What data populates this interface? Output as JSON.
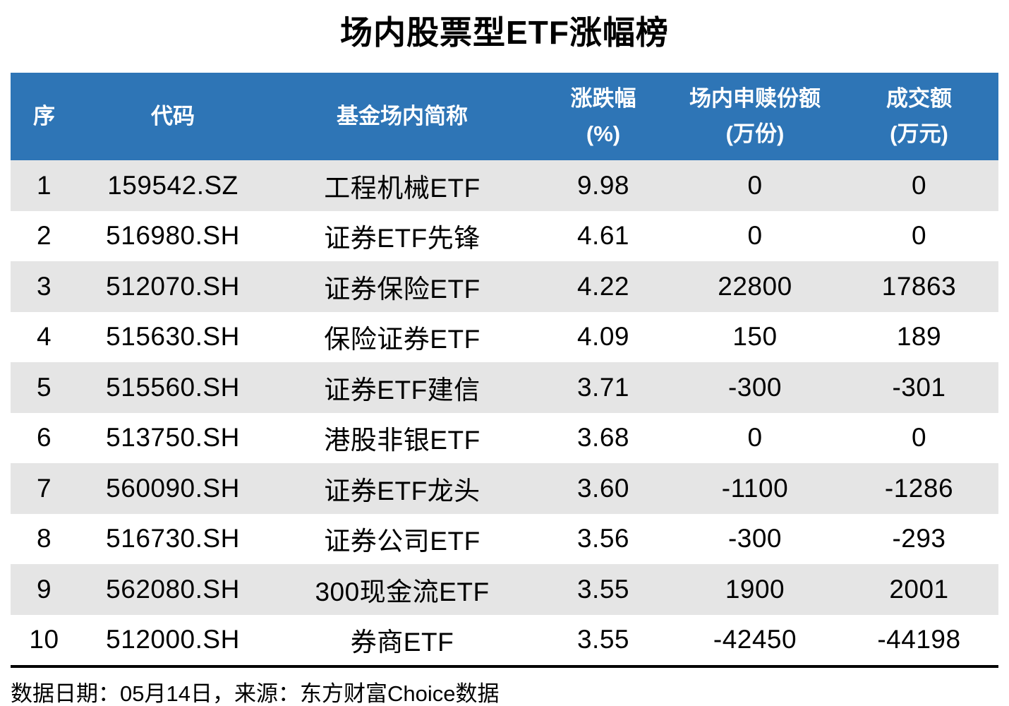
{
  "title": "场内股票型ETF涨幅榜",
  "footer": "数据日期：05月14日，来源：东方财富Choice数据",
  "colors": {
    "header_bg": "#2E75B6",
    "header_text": "#FFFFFF",
    "row_alt_bg": "#E5E5E5",
    "row_bg": "#FFFFFF",
    "text": "#000000",
    "divider": "#000000"
  },
  "table": {
    "columns": [
      "序",
      "代码",
      "基金场内简称",
      "涨跌幅\n(%)",
      "场内申赎份额\n(万份)",
      "成交额\n(万元)"
    ],
    "rows": [
      [
        "1",
        "159542.SZ",
        "工程机械ETF",
        "9.98",
        "0",
        "0"
      ],
      [
        "2",
        "516980.SH",
        "证券ETF先锋",
        "4.61",
        "0",
        "0"
      ],
      [
        "3",
        "512070.SH",
        "证券保险ETF",
        "4.22",
        "22800",
        "17863"
      ],
      [
        "4",
        "515630.SH",
        "保险证券ETF",
        "4.09",
        "150",
        "189"
      ],
      [
        "5",
        "515560.SH",
        "证券ETF建信",
        "3.71",
        "-300",
        "-301"
      ],
      [
        "6",
        "513750.SH",
        "港股非银ETF",
        "3.68",
        "0",
        "0"
      ],
      [
        "7",
        "560090.SH",
        "证券ETF龙头",
        "3.60",
        "-1100",
        "-1286"
      ],
      [
        "8",
        "516730.SH",
        "证券公司ETF",
        "3.56",
        "-300",
        "-293"
      ],
      [
        "9",
        "562080.SH",
        "300现金流ETF",
        "3.55",
        "1900",
        "2001"
      ],
      [
        "10",
        "512000.SH",
        "券商ETF",
        "3.55",
        "-42450",
        "-44198"
      ]
    ]
  },
  "chart_data": {
    "type": "table",
    "title": "场内股票型ETF涨幅榜",
    "columns": [
      "序",
      "代码",
      "基金场内简称",
      "涨跌幅(%)",
      "场内申赎份额(万份)",
      "成交额(万元)"
    ],
    "rows": [
      [
        1,
        "159542.SZ",
        "工程机械ETF",
        9.98,
        0,
        0
      ],
      [
        2,
        "516980.SH",
        "证券ETF先锋",
        4.61,
        0,
        0
      ],
      [
        3,
        "512070.SH",
        "证券保险ETF",
        4.22,
        22800,
        17863
      ],
      [
        4,
        "515630.SH",
        "保险证券ETF",
        4.09,
        150,
        189
      ],
      [
        5,
        "515560.SH",
        "证券ETF建信",
        3.71,
        -300,
        -301
      ],
      [
        6,
        "513750.SH",
        "港股非银ETF",
        3.68,
        0,
        0
      ],
      [
        7,
        "560090.SH",
        "证券ETF龙头",
        3.6,
        -1100,
        -1286
      ],
      [
        8,
        "516730.SH",
        "证券公司ETF",
        3.56,
        -300,
        -293
      ],
      [
        9,
        "562080.SH",
        "300现金流ETF",
        3.55,
        1900,
        2001
      ],
      [
        10,
        "512000.SH",
        "券商ETF",
        3.55,
        -42450,
        -44198
      ]
    ],
    "source_note": "数据日期：05月14日，来源：东方财富Choice数据",
    "layout": {
      "alternating_rows": true,
      "header_style": "blue-band-white-text",
      "all_cells_centered": true
    }
  }
}
